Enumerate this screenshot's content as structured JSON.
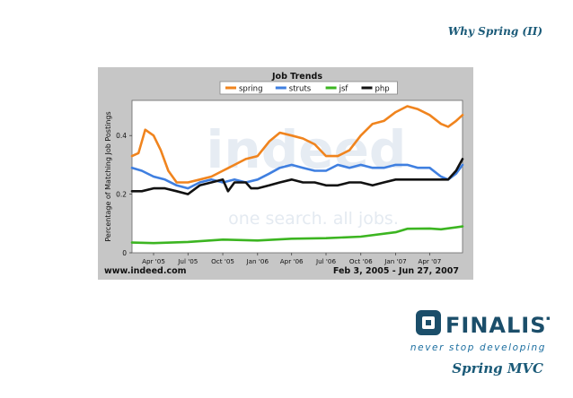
{
  "slide": {
    "title": "Why Spring (II)",
    "footer_title": "Spring MVC",
    "logo_text": "FINALIST",
    "tagline": "never stop developing"
  },
  "chart_data": {
    "type": "line",
    "title": "Job Trends",
    "ylabel": "Percentage of Matching Job Postings",
    "xlabel": "",
    "x_tick_labels": [
      "Apr '05",
      "Jul '05",
      "Oct '05",
      "Jan '06",
      "Apr '06",
      "Jul '06",
      "Oct '06",
      "Jan '07",
      "Apr '07"
    ],
    "x_ticks": [
      "2005-04-01",
      "2005-07-01",
      "2005-10-01",
      "2006-01-01",
      "2006-04-01",
      "2006-07-01",
      "2006-10-01",
      "2007-01-01",
      "2007-04-01"
    ],
    "x_range": [
      "2005-02-03",
      "2007-06-27"
    ],
    "y_ticks": [
      0,
      0.2,
      0.4
    ],
    "y_tick_labels": [
      "0",
      "0.2",
      "0.4"
    ],
    "ylim": [
      0,
      0.52
    ],
    "grid": false,
    "legend_position": "top-center",
    "watermark": [
      "indeed",
      "one search. all jobs."
    ],
    "source": "www.indeed.com",
    "date_range_label": "Feb 3, 2005 - Jun 27, 2007",
    "series": [
      {
        "name": "spring",
        "color": "#f0841e",
        "points": [
          [
            "2005-02-03",
            0.33
          ],
          [
            "2005-02-20",
            0.34
          ],
          [
            "2005-03-10",
            0.42
          ],
          [
            "2005-04-01",
            0.4
          ],
          [
            "2005-04-20",
            0.35
          ],
          [
            "2005-05-10",
            0.28
          ],
          [
            "2005-06-01",
            0.24
          ],
          [
            "2005-07-01",
            0.24
          ],
          [
            "2005-08-01",
            0.25
          ],
          [
            "2005-09-01",
            0.26
          ],
          [
            "2005-10-01",
            0.28
          ],
          [
            "2005-11-01",
            0.3
          ],
          [
            "2005-12-01",
            0.32
          ],
          [
            "2006-01-01",
            0.33
          ],
          [
            "2006-02-01",
            0.38
          ],
          [
            "2006-03-01",
            0.41
          ],
          [
            "2006-04-01",
            0.4
          ],
          [
            "2006-05-01",
            0.39
          ],
          [
            "2006-06-01",
            0.37
          ],
          [
            "2006-07-01",
            0.33
          ],
          [
            "2006-08-01",
            0.33
          ],
          [
            "2006-09-01",
            0.35
          ],
          [
            "2006-10-01",
            0.4
          ],
          [
            "2006-11-01",
            0.44
          ],
          [
            "2006-12-01",
            0.45
          ],
          [
            "2007-01-01",
            0.48
          ],
          [
            "2007-02-01",
            0.5
          ],
          [
            "2007-03-01",
            0.49
          ],
          [
            "2007-04-01",
            0.47
          ],
          [
            "2007-05-01",
            0.44
          ],
          [
            "2007-05-20",
            0.43
          ],
          [
            "2007-06-10",
            0.45
          ],
          [
            "2007-06-27",
            0.47
          ]
        ]
      },
      {
        "name": "struts",
        "color": "#3f7fe0",
        "points": [
          [
            "2005-02-03",
            0.29
          ],
          [
            "2005-03-01",
            0.28
          ],
          [
            "2005-04-01",
            0.26
          ],
          [
            "2005-05-01",
            0.25
          ],
          [
            "2005-06-01",
            0.23
          ],
          [
            "2005-07-01",
            0.22
          ],
          [
            "2005-08-01",
            0.24
          ],
          [
            "2005-09-01",
            0.25
          ],
          [
            "2005-10-01",
            0.24
          ],
          [
            "2005-11-01",
            0.25
          ],
          [
            "2005-12-01",
            0.24
          ],
          [
            "2006-01-01",
            0.25
          ],
          [
            "2006-02-01",
            0.27
          ],
          [
            "2006-03-01",
            0.29
          ],
          [
            "2006-04-01",
            0.3
          ],
          [
            "2006-05-01",
            0.29
          ],
          [
            "2006-06-01",
            0.28
          ],
          [
            "2006-07-01",
            0.28
          ],
          [
            "2006-08-01",
            0.3
          ],
          [
            "2006-09-01",
            0.29
          ],
          [
            "2006-10-01",
            0.3
          ],
          [
            "2006-11-01",
            0.29
          ],
          [
            "2006-12-01",
            0.29
          ],
          [
            "2007-01-01",
            0.3
          ],
          [
            "2007-02-01",
            0.3
          ],
          [
            "2007-03-01",
            0.29
          ],
          [
            "2007-04-01",
            0.29
          ],
          [
            "2007-05-01",
            0.26
          ],
          [
            "2007-05-20",
            0.25
          ],
          [
            "2007-06-10",
            0.27
          ],
          [
            "2007-06-27",
            0.3
          ]
        ]
      },
      {
        "name": "jsf",
        "color": "#3cb521",
        "points": [
          [
            "2005-02-03",
            0.035
          ],
          [
            "2005-04-01",
            0.033
          ],
          [
            "2005-07-01",
            0.037
          ],
          [
            "2005-10-01",
            0.045
          ],
          [
            "2006-01-01",
            0.042
          ],
          [
            "2006-04-01",
            0.048
          ],
          [
            "2006-07-01",
            0.05
          ],
          [
            "2006-10-01",
            0.055
          ],
          [
            "2007-01-01",
            0.07
          ],
          [
            "2007-02-01",
            0.082
          ],
          [
            "2007-04-01",
            0.083
          ],
          [
            "2007-05-01",
            0.08
          ],
          [
            "2007-06-27",
            0.09
          ]
        ]
      },
      {
        "name": "php",
        "color": "#111111",
        "points": [
          [
            "2005-02-03",
            0.21
          ],
          [
            "2005-03-01",
            0.21
          ],
          [
            "2005-04-01",
            0.22
          ],
          [
            "2005-05-01",
            0.22
          ],
          [
            "2005-06-01",
            0.21
          ],
          [
            "2005-07-01",
            0.2
          ],
          [
            "2005-08-01",
            0.23
          ],
          [
            "2005-09-01",
            0.24
          ],
          [
            "2005-10-01",
            0.25
          ],
          [
            "2005-10-15",
            0.21
          ],
          [
            "2005-11-01",
            0.24
          ],
          [
            "2005-12-01",
            0.24
          ],
          [
            "2005-12-15",
            0.22
          ],
          [
            "2006-01-01",
            0.22
          ],
          [
            "2006-02-01",
            0.23
          ],
          [
            "2006-03-01",
            0.24
          ],
          [
            "2006-04-01",
            0.25
          ],
          [
            "2006-05-01",
            0.24
          ],
          [
            "2006-06-01",
            0.24
          ],
          [
            "2006-07-01",
            0.23
          ],
          [
            "2006-08-01",
            0.23
          ],
          [
            "2006-09-01",
            0.24
          ],
          [
            "2006-10-01",
            0.24
          ],
          [
            "2006-11-01",
            0.23
          ],
          [
            "2006-12-01",
            0.24
          ],
          [
            "2007-01-01",
            0.25
          ],
          [
            "2007-02-01",
            0.25
          ],
          [
            "2007-03-01",
            0.25
          ],
          [
            "2007-04-01",
            0.25
          ],
          [
            "2007-05-01",
            0.25
          ],
          [
            "2007-05-20",
            0.25
          ],
          [
            "2007-06-10",
            0.28
          ],
          [
            "2007-06-27",
            0.32
          ]
        ]
      }
    ]
  }
}
